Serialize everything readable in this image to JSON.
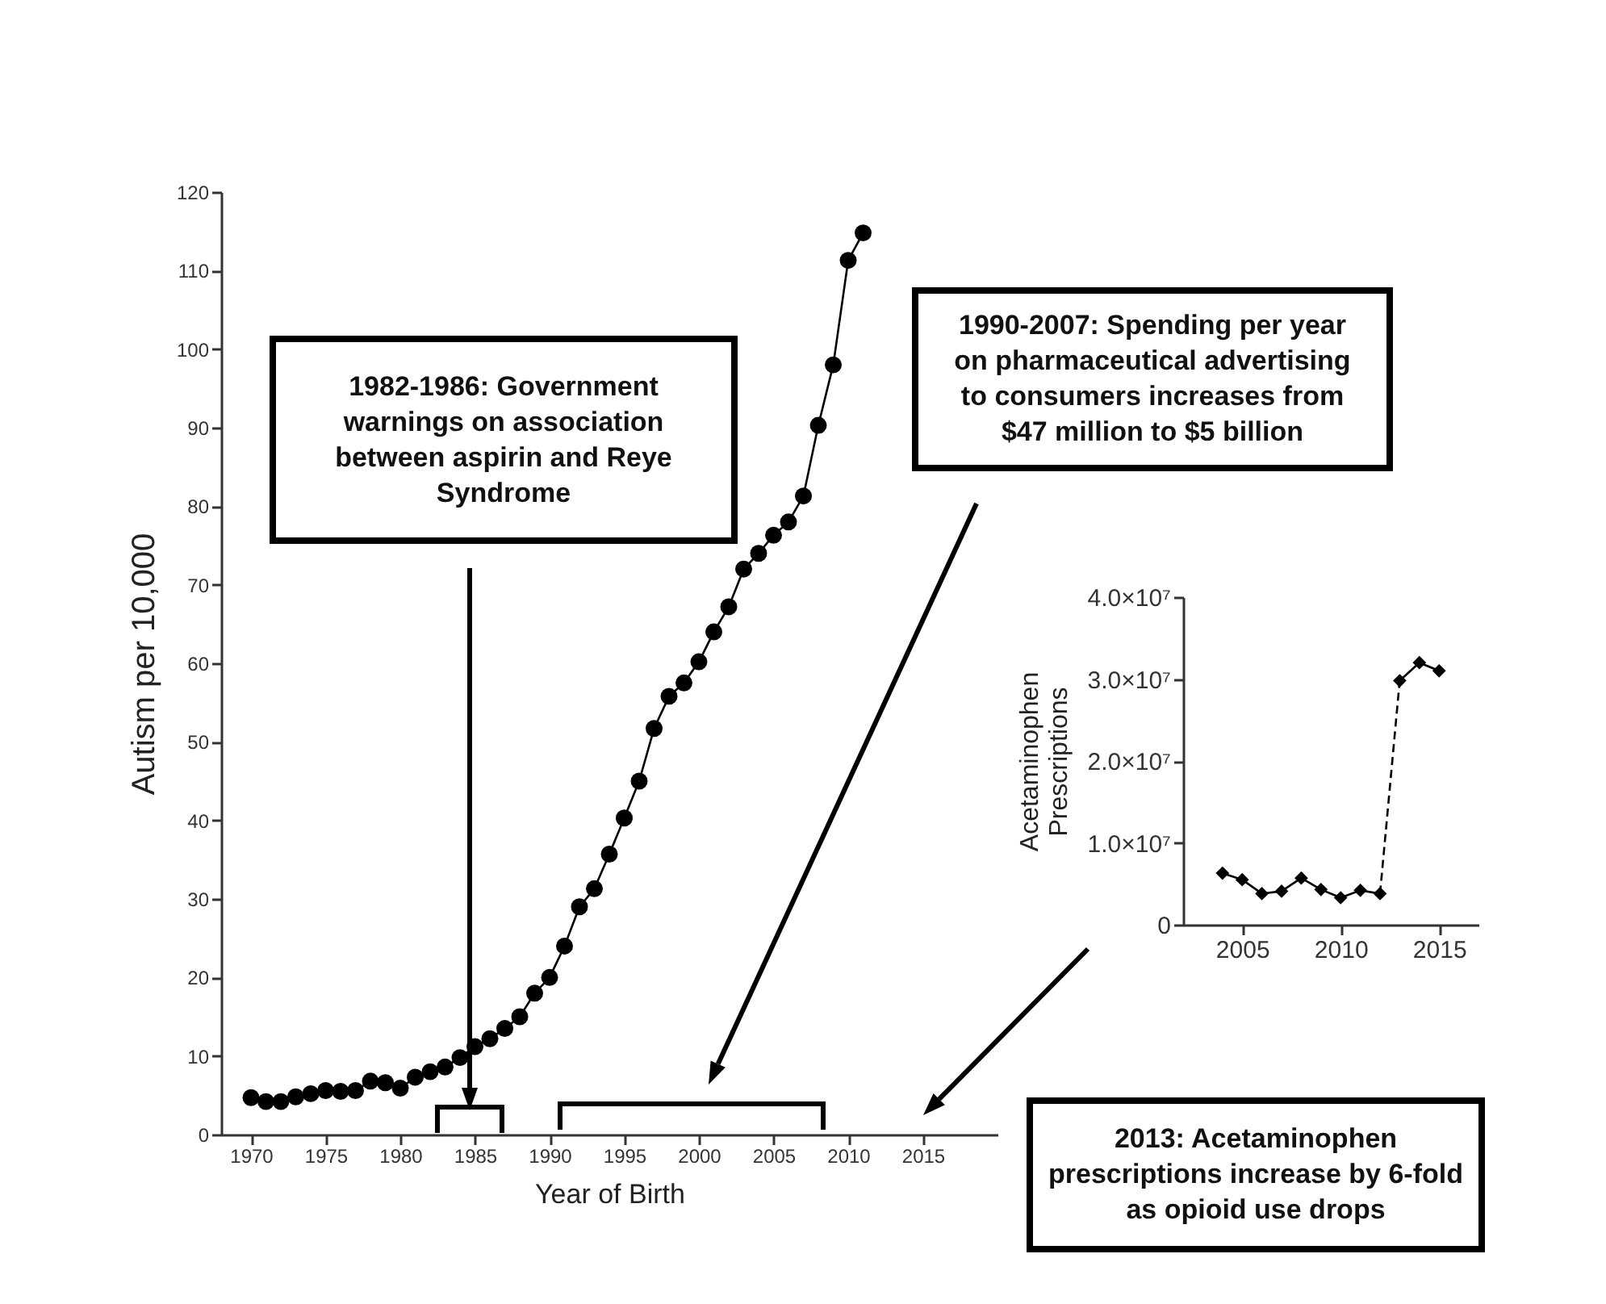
{
  "chart_data": [
    {
      "type": "line",
      "xlabel": "Year of Birth",
      "ylabel": "Autism per 10,000",
      "x": [
        1970,
        1971,
        1972,
        1973,
        1974,
        1975,
        1976,
        1977,
        1978,
        1979,
        1980,
        1981,
        1982,
        1983,
        1984,
        1985,
        1986,
        1987,
        1988,
        1989,
        1990,
        1991,
        1992,
        1993,
        1994,
        1995,
        1996,
        1997,
        1998,
        1999,
        2000,
        2001,
        2002,
        2003,
        2004,
        2005,
        2006,
        2007,
        2008,
        2009,
        2010,
        2011
      ],
      "series": [
        {
          "color": "#000000",
          "values": [
            4.7,
            4.2,
            4.2,
            4.8,
            5.2,
            5.6,
            5.5,
            5.6,
            6.8,
            6.6,
            5.9,
            7.3,
            8,
            8.6,
            9.8,
            11.2,
            12.2,
            13.5,
            15,
            18,
            20,
            24,
            29,
            31.3,
            35.7,
            40.3,
            45,
            51.7,
            55.8,
            57.5,
            60.2,
            64,
            67.2,
            72,
            74,
            76.3,
            78,
            81.3,
            90.3,
            98,
            111.3,
            114.8
          ]
        }
      ],
      "xlim": [
        1968,
        2020
      ],
      "xticks": [
        1970,
        1975,
        1980,
        1985,
        1990,
        1995,
        2000,
        2005,
        2010,
        2015
      ],
      "ylim": [
        0,
        120
      ],
      "yticks": [
        0,
        10,
        20,
        30,
        40,
        50,
        60,
        70,
        80,
        90,
        100,
        110,
        120
      ],
      "marker": "circle",
      "line_style": "solid",
      "grid": false,
      "annotations": [
        "1982-1986: Government warnings on association between aspirin and Reye Syndrome",
        "1990-2007: Spending per year on pharmaceutical advertising to consumers increases from $47 million to $5 billion"
      ]
    },
    {
      "type": "line",
      "ylabel": "Acetaminophen Prescriptions",
      "series": [
        {
          "color": "#000000",
          "x": [
            2004,
            2005,
            2006,
            2007,
            2008,
            2009,
            2010,
            2011,
            2012
          ],
          "values": [
            6300000,
            5500000,
            3800000,
            4100000,
            5700000,
            4300000,
            3300000,
            4200000,
            3800000
          ],
          "marker": "diamond",
          "line_style": "solid"
        },
        {
          "color": "#000000",
          "x": [
            2012,
            2013
          ],
          "values": [
            3800000,
            29800000
          ],
          "line_style": "dashed"
        },
        {
          "color": "#000000",
          "x": [
            2013,
            2014,
            2015
          ],
          "values": [
            29800000,
            32000000,
            31000000
          ],
          "marker": "diamond",
          "line_style": "solid"
        }
      ],
      "xlim": [
        2002,
        2017
      ],
      "xticks": [
        2005,
        2010,
        2015
      ],
      "ylim": [
        0,
        40000000
      ],
      "yticks": [
        {
          "value": 0,
          "label": "0"
        },
        {
          "value": 10000000,
          "label": "1.0×10⁷"
        },
        {
          "value": 20000000,
          "label": "2.0×10⁷"
        },
        {
          "value": 30000000,
          "label": "3.0×10⁷"
        },
        {
          "value": 40000000,
          "label": "4.0×10⁷"
        }
      ],
      "grid": false,
      "annotations": [
        "2013: Acetaminophen prescriptions increase by 6-fold as opioid use drops"
      ]
    }
  ]
}
